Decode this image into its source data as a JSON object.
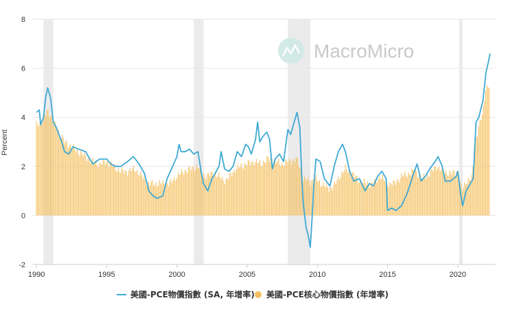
{
  "chart_data": {
    "type": "line",
    "title": "",
    "watermark": "MacroMicro",
    "ylabel": "Percent",
    "xlabel": "",
    "xlim": [
      1989.7,
      2022.7
    ],
    "ylim": [
      -2,
      8
    ],
    "yticks": [
      -2,
      0,
      2,
      4,
      6,
      8
    ],
    "xticks": [
      1990,
      1995,
      2000,
      2005,
      2010,
      2015,
      2020
    ],
    "recessions": [
      [
        1990.5,
        1991.2
      ],
      [
        2001.2,
        2001.9
      ],
      [
        2007.9,
        2009.5
      ],
      [
        2020.1,
        2020.35
      ]
    ],
    "colors": {
      "line": "#3da8d4",
      "bars": "#f5c060",
      "recession": "#ebebeb",
      "grid": "#e6e6e6"
    },
    "series": [
      {
        "name": "美國-PCE物價指數 (SA, 年增率)",
        "kind": "line",
        "points": [
          [
            1990.0,
            4.2
          ],
          [
            1990.2,
            4.3
          ],
          [
            1990.3,
            3.7
          ],
          [
            1990.5,
            4.0
          ],
          [
            1990.65,
            4.8
          ],
          [
            1990.8,
            5.2
          ],
          [
            1991.0,
            4.8
          ],
          [
            1991.2,
            3.8
          ],
          [
            1991.4,
            3.6
          ],
          [
            1991.6,
            3.3
          ],
          [
            1991.8,
            3.0
          ],
          [
            1992.0,
            2.6
          ],
          [
            1992.3,
            2.5
          ],
          [
            1992.6,
            2.8
          ],
          [
            1993.0,
            2.7
          ],
          [
            1993.5,
            2.6
          ],
          [
            1994.0,
            2.1
          ],
          [
            1994.5,
            2.3
          ],
          [
            1995.0,
            2.3
          ],
          [
            1995.3,
            2.1
          ],
          [
            1995.6,
            2.0
          ],
          [
            1996.0,
            2.0
          ],
          [
            1996.5,
            2.2
          ],
          [
            1996.9,
            2.4
          ],
          [
            1997.3,
            2.1
          ],
          [
            1997.7,
            1.7
          ],
          [
            1998.0,
            1.0
          ],
          [
            1998.3,
            0.8
          ],
          [
            1998.6,
            0.7
          ],
          [
            1999.0,
            0.8
          ],
          [
            1999.3,
            1.5
          ],
          [
            1999.7,
            2.0
          ],
          [
            2000.0,
            2.4
          ],
          [
            2000.15,
            2.9
          ],
          [
            2000.3,
            2.6
          ],
          [
            2000.6,
            2.6
          ],
          [
            2000.9,
            2.7
          ],
          [
            2001.2,
            2.5
          ],
          [
            2001.5,
            2.6
          ],
          [
            2001.75,
            1.7
          ],
          [
            2001.9,
            1.3
          ],
          [
            2002.2,
            1.0
          ],
          [
            2002.5,
            1.5
          ],
          [
            2002.8,
            1.8
          ],
          [
            2003.0,
            2.0
          ],
          [
            2003.15,
            2.6
          ],
          [
            2003.4,
            1.9
          ],
          [
            2003.7,
            1.8
          ],
          [
            2004.0,
            2.0
          ],
          [
            2004.3,
            2.6
          ],
          [
            2004.6,
            2.4
          ],
          [
            2004.9,
            2.9
          ],
          [
            2005.1,
            2.8
          ],
          [
            2005.3,
            2.5
          ],
          [
            2005.6,
            3.1
          ],
          [
            2005.75,
            3.8
          ],
          [
            2005.9,
            3.0
          ],
          [
            2006.1,
            3.2
          ],
          [
            2006.4,
            3.4
          ],
          [
            2006.6,
            3.1
          ],
          [
            2006.8,
            1.9
          ],
          [
            2007.0,
            2.3
          ],
          [
            2007.3,
            2.5
          ],
          [
            2007.6,
            2.2
          ],
          [
            2007.9,
            3.5
          ],
          [
            2008.1,
            3.3
          ],
          [
            2008.35,
            3.8
          ],
          [
            2008.55,
            4.2
          ],
          [
            2008.75,
            3.6
          ],
          [
            2008.9,
            1.5
          ],
          [
            2009.0,
            0.5
          ],
          [
            2009.2,
            -0.5
          ],
          [
            2009.35,
            -0.8
          ],
          [
            2009.5,
            -1.3
          ],
          [
            2009.6,
            -0.4
          ],
          [
            2009.75,
            1.2
          ],
          [
            2009.9,
            2.3
          ],
          [
            2010.2,
            2.2
          ],
          [
            2010.5,
            1.5
          ],
          [
            2010.9,
            1.2
          ],
          [
            2011.2,
            2.0
          ],
          [
            2011.5,
            2.6
          ],
          [
            2011.8,
            2.9
          ],
          [
            2012.0,
            2.6
          ],
          [
            2012.3,
            1.8
          ],
          [
            2012.6,
            1.4
          ],
          [
            2013.0,
            1.5
          ],
          [
            2013.4,
            1.0
          ],
          [
            2013.7,
            1.3
          ],
          [
            2014.0,
            1.2
          ],
          [
            2014.3,
            1.6
          ],
          [
            2014.6,
            1.8
          ],
          [
            2014.9,
            1.5
          ],
          [
            2015.0,
            0.2
          ],
          [
            2015.3,
            0.3
          ],
          [
            2015.6,
            0.2
          ],
          [
            2016.0,
            0.4
          ],
          [
            2016.4,
            0.9
          ],
          [
            2016.8,
            1.6
          ],
          [
            2017.1,
            2.1
          ],
          [
            2017.4,
            1.4
          ],
          [
            2017.7,
            1.6
          ],
          [
            2018.0,
            1.9
          ],
          [
            2018.4,
            2.2
          ],
          [
            2018.6,
            2.4
          ],
          [
            2018.9,
            2.0
          ],
          [
            2019.1,
            1.4
          ],
          [
            2019.5,
            1.4
          ],
          [
            2019.9,
            1.6
          ],
          [
            2020.0,
            1.8
          ],
          [
            2020.2,
            0.9
          ],
          [
            2020.35,
            0.4
          ],
          [
            2020.6,
            1.0
          ],
          [
            2020.8,
            1.2
          ],
          [
            2021.1,
            1.5
          ],
          [
            2021.3,
            3.8
          ],
          [
            2021.5,
            4.0
          ],
          [
            2021.8,
            4.7
          ],
          [
            2022.0,
            5.8
          ],
          [
            2022.2,
            6.3
          ],
          [
            2022.3,
            6.6
          ]
        ]
      },
      {
        "name": "美國-PCE核心物價指數 (年增率)",
        "kind": "bar",
        "points": [
          [
            1990.0,
            3.7
          ],
          [
            1990.5,
            3.9
          ],
          [
            1990.8,
            4.3
          ],
          [
            1991.0,
            4.1
          ],
          [
            1991.3,
            3.7
          ],
          [
            1991.6,
            3.4
          ],
          [
            1992.0,
            3.0
          ],
          [
            1992.5,
            2.8
          ],
          [
            1993.0,
            2.6
          ],
          [
            1993.5,
            2.4
          ],
          [
            1994.0,
            2.2
          ],
          [
            1994.5,
            2.1
          ],
          [
            1995.0,
            2.2
          ],
          [
            1995.5,
            2.0
          ],
          [
            1996.0,
            1.8
          ],
          [
            1996.5,
            1.8
          ],
          [
            1997.0,
            1.9
          ],
          [
            1997.5,
            1.6
          ],
          [
            1998.0,
            1.3
          ],
          [
            1998.5,
            1.3
          ],
          [
            1999.0,
            1.3
          ],
          [
            1999.5,
            1.3
          ],
          [
            2000.0,
            1.6
          ],
          [
            2000.5,
            1.8
          ],
          [
            2001.0,
            1.9
          ],
          [
            2001.5,
            2.0
          ],
          [
            2002.0,
            1.6
          ],
          [
            2002.5,
            1.7
          ],
          [
            2003.0,
            1.6
          ],
          [
            2003.5,
            1.4
          ],
          [
            2004.0,
            1.8
          ],
          [
            2004.5,
            2.0
          ],
          [
            2005.0,
            2.1
          ],
          [
            2005.5,
            2.2
          ],
          [
            2006.0,
            2.1
          ],
          [
            2006.5,
            2.3
          ],
          [
            2007.0,
            2.2
          ],
          [
            2007.5,
            2.1
          ],
          [
            2008.0,
            2.2
          ],
          [
            2008.5,
            2.3
          ],
          [
            2008.9,
            1.8
          ],
          [
            2009.0,
            1.5
          ],
          [
            2009.5,
            1.4
          ],
          [
            2009.9,
            1.5
          ],
          [
            2010.3,
            1.3
          ],
          [
            2010.8,
            1.1
          ],
          [
            2011.2,
            1.2
          ],
          [
            2011.6,
            1.6
          ],
          [
            2012.0,
            1.9
          ],
          [
            2012.5,
            1.7
          ],
          [
            2013.0,
            1.4
          ],
          [
            2013.5,
            1.3
          ],
          [
            2014.0,
            1.3
          ],
          [
            2014.5,
            1.6
          ],
          [
            2015.0,
            1.3
          ],
          [
            2015.5,
            1.3
          ],
          [
            2016.0,
            1.6
          ],
          [
            2016.5,
            1.7
          ],
          [
            2017.0,
            1.8
          ],
          [
            2017.5,
            1.5
          ],
          [
            2018.0,
            1.7
          ],
          [
            2018.5,
            2.0
          ],
          [
            2019.0,
            1.8
          ],
          [
            2019.5,
            1.7
          ],
          [
            2020.0,
            1.8
          ],
          [
            2020.3,
            1.0
          ],
          [
            2020.6,
            1.4
          ],
          [
            2021.0,
            1.5
          ],
          [
            2021.3,
            3.1
          ],
          [
            2021.5,
            3.6
          ],
          [
            2021.8,
            4.2
          ],
          [
            2022.0,
            5.2
          ],
          [
            2022.2,
            5.3
          ],
          [
            2022.3,
            5.2
          ]
        ]
      }
    ]
  }
}
